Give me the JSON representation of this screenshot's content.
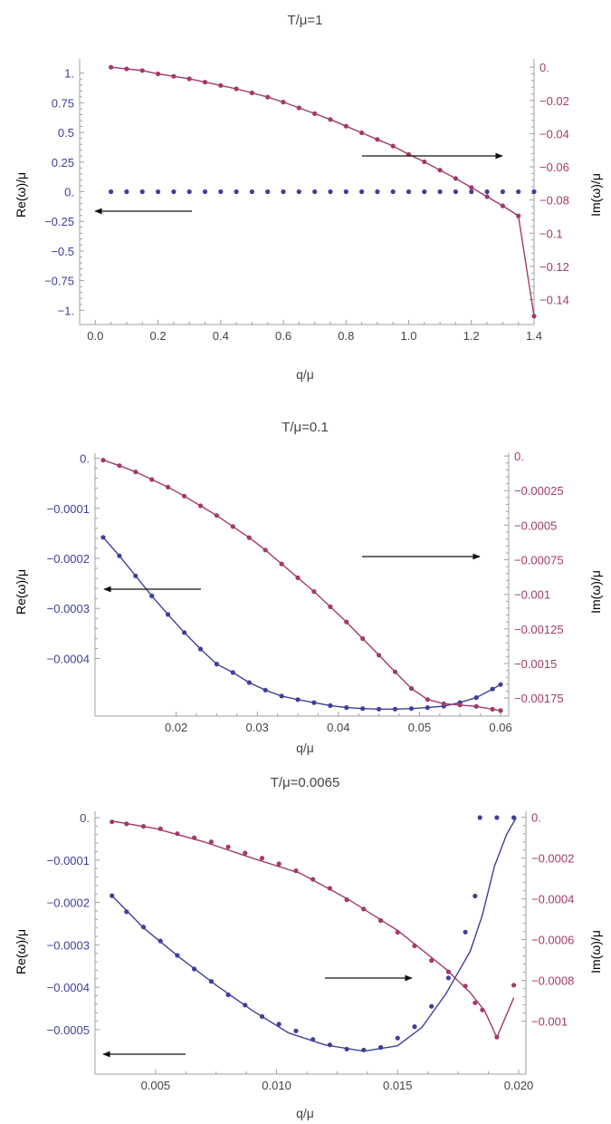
{
  "colors": {
    "re": "#3f3f9a",
    "im": "#a23a6a",
    "axis": "#a0a0a0",
    "text": "#444444",
    "arrow": "#111111"
  },
  "chart_data": [
    {
      "type": "scatter",
      "title": "T/μ=1",
      "xlabel": "q/μ",
      "ylabel_left": "Re(ω)/μ",
      "ylabel_right": "Im(ω)/μ",
      "xlim": [
        -0.05,
        1.4
      ],
      "ylim_left": [
        -1.12,
        1.12
      ],
      "ylim_right": [
        -0.155,
        0.005
      ],
      "xticks": [
        0.0,
        0.2,
        0.4,
        0.6,
        0.8,
        1.0,
        1.2,
        1.4
      ],
      "xtick_labels": [
        "0.0",
        "0.2",
        "0.4",
        "0.6",
        "0.8",
        "1.0",
        "1.2",
        "1.4"
      ],
      "yticks_left": [
        1,
        0.75,
        0.5,
        0.25,
        0,
        -0.25,
        -0.5,
        -0.75,
        -1
      ],
      "ytick_labels_left": [
        "1.",
        "0.75",
        "0.5",
        "0.25",
        "0.",
        "−0.25",
        "−0.5",
        "−0.75",
        "−1."
      ],
      "yticks_right": [
        0,
        -0.02,
        -0.04,
        -0.06,
        -0.08,
        -0.1,
        -0.12,
        -0.14
      ],
      "ytick_labels_right": [
        "0.",
        "−0.02",
        "−0.04",
        "−0.06",
        "−0.08",
        "−0.1",
        "−0.12",
        "−0.14"
      ],
      "series": [
        {
          "name": "Re(ω)/μ",
          "axis": "left",
          "line": false,
          "points": [
            [
              0.05,
              0
            ],
            [
              0.1,
              0
            ],
            [
              0.15,
              0
            ],
            [
              0.2,
              0
            ],
            [
              0.25,
              0
            ],
            [
              0.3,
              0
            ],
            [
              0.35,
              0
            ],
            [
              0.4,
              0
            ],
            [
              0.45,
              0
            ],
            [
              0.5,
              0
            ],
            [
              0.55,
              0
            ],
            [
              0.6,
              0
            ],
            [
              0.65,
              0
            ],
            [
              0.7,
              0
            ],
            [
              0.75,
              0
            ],
            [
              0.8,
              0
            ],
            [
              0.85,
              0
            ],
            [
              0.9,
              0
            ],
            [
              0.95,
              0
            ],
            [
              1.0,
              0
            ],
            [
              1.05,
              0
            ],
            [
              1.1,
              0
            ],
            [
              1.15,
              0
            ],
            [
              1.2,
              0
            ],
            [
              1.25,
              0
            ],
            [
              1.3,
              0
            ],
            [
              1.35,
              0
            ],
            [
              1.4,
              0
            ]
          ]
        },
        {
          "name": "Im(ω)/μ",
          "axis": "right",
          "line": true,
          "points": [
            [
              0.05,
              0.0
            ],
            [
              0.1,
              -0.001
            ],
            [
              0.15,
              -0.002
            ],
            [
              0.2,
              -0.004
            ],
            [
              0.25,
              -0.0055
            ],
            [
              0.3,
              -0.007
            ],
            [
              0.35,
              -0.009
            ],
            [
              0.4,
              -0.011
            ],
            [
              0.45,
              -0.013
            ],
            [
              0.5,
              -0.0155
            ],
            [
              0.55,
              -0.018
            ],
            [
              0.6,
              -0.021
            ],
            [
              0.65,
              -0.0245
            ],
            [
              0.7,
              -0.028
            ],
            [
              0.75,
              -0.0315
            ],
            [
              0.8,
              -0.0355
            ],
            [
              0.85,
              -0.0395
            ],
            [
              0.9,
              -0.0435
            ],
            [
              0.95,
              -0.0475
            ],
            [
              1.0,
              -0.0525
            ],
            [
              1.05,
              -0.057
            ],
            [
              1.1,
              -0.062
            ],
            [
              1.15,
              -0.067
            ],
            [
              1.2,
              -0.0725
            ],
            [
              1.25,
              -0.078
            ],
            [
              1.3,
              -0.0835
            ],
            [
              1.35,
              -0.0895
            ],
            [
              1.4,
              -0.15
            ]
          ]
        }
      ]
    },
    {
      "type": "scatter",
      "title": "T/μ=0.1",
      "xlabel": "q/μ",
      "ylabel_left": "Re(ω)/μ",
      "ylabel_right": "Im(ω)/μ",
      "xlim": [
        0.01,
        0.061
      ],
      "ylim_left": [
        -0.000515,
        1e-05
      ],
      "ylim_right": [
        -0.00188,
        2e-05
      ],
      "xticks": [
        0.02,
        0.03,
        0.04,
        0.05,
        0.06
      ],
      "xtick_labels": [
        "0.02",
        "0.03",
        "0.04",
        "0.05",
        "0.06"
      ],
      "yticks_left": [
        0,
        -0.0001,
        -0.0002,
        -0.0003,
        -0.0004
      ],
      "ytick_labels_left": [
        "0.",
        "−0.0001",
        "−0.0002",
        "−0.0003",
        "−0.0004"
      ],
      "yticks_right": [
        0,
        -0.00025,
        -0.0005,
        -0.00075,
        -0.001,
        -0.00125,
        -0.0015,
        -0.00175
      ],
      "ytick_labels_right": [
        "0.",
        "−0.00025",
        "−0.0005",
        "−0.00075",
        "−0.001",
        "−0.00125",
        "−0.0015",
        "−0.00175"
      ],
      "series": [
        {
          "name": "Re(ω)/μ",
          "axis": "left",
          "line": true,
          "points": [
            [
              0.011,
              -0.000158
            ],
            [
              0.013,
              -0.000195
            ],
            [
              0.015,
              -0.000235
            ],
            [
              0.017,
              -0.000275
            ],
            [
              0.019,
              -0.000312
            ],
            [
              0.021,
              -0.000348
            ],
            [
              0.023,
              -0.000381
            ],
            [
              0.025,
              -0.000411
            ],
            [
              0.027,
              -0.000428
            ],
            [
              0.029,
              -0.000448
            ],
            [
              0.031,
              -0.000463
            ],
            [
              0.033,
              -0.000475
            ],
            [
              0.035,
              -0.000482
            ],
            [
              0.037,
              -0.000488
            ],
            [
              0.039,
              -0.000494
            ],
            [
              0.041,
              -0.000498
            ],
            [
              0.043,
              -0.0005
            ],
            [
              0.045,
              -0.000501
            ],
            [
              0.047,
              -0.000501
            ],
            [
              0.049,
              -0.0005
            ],
            [
              0.051,
              -0.000498
            ],
            [
              0.053,
              -0.000495
            ],
            [
              0.055,
              -0.000488
            ],
            [
              0.057,
              -0.000478
            ],
            [
              0.059,
              -0.000461
            ],
            [
              0.06,
              -0.000452
            ]
          ]
        },
        {
          "name": "Im(ω)/μ",
          "axis": "right",
          "line": true,
          "points": [
            [
              0.011,
              -3e-05
            ],
            [
              0.013,
              -7e-05
            ],
            [
              0.015,
              -0.000115
            ],
            [
              0.017,
              -0.00017
            ],
            [
              0.019,
              -0.000225
            ],
            [
              0.021,
              -0.00029
            ],
            [
              0.023,
              -0.00036
            ],
            [
              0.025,
              -0.00043
            ],
            [
              0.027,
              -0.00051
            ],
            [
              0.029,
              -0.00059
            ],
            [
              0.031,
              -0.00068
            ],
            [
              0.033,
              -0.00078
            ],
            [
              0.035,
              -0.00088
            ],
            [
              0.037,
              -0.00098
            ],
            [
              0.039,
              -0.00109
            ],
            [
              0.041,
              -0.0012
            ],
            [
              0.043,
              -0.00132
            ],
            [
              0.045,
              -0.00144
            ],
            [
              0.047,
              -0.00156
            ],
            [
              0.049,
              -0.00168
            ],
            [
              0.051,
              -0.00176
            ],
            [
              0.053,
              -0.00179
            ],
            [
              0.055,
              -0.0018
            ],
            [
              0.057,
              -0.00181
            ],
            [
              0.059,
              -0.00183
            ],
            [
              0.06,
              -0.00184
            ]
          ]
        }
      ]
    },
    {
      "type": "scatter",
      "title": "T/μ=0.0065",
      "xlabel": "q/μ",
      "ylabel_left": "Re(ω)/μ",
      "ylabel_right": "Im(ω)/μ",
      "xlim": [
        0.0025,
        0.0203
      ],
      "ylim_left": [
        -0.000605,
        1.5e-05
      ],
      "ylim_right": [
        -0.00126,
        3e-05
      ],
      "xticks": [
        0.005,
        0.01,
        0.015,
        0.02
      ],
      "xtick_labels": [
        "0.005",
        "0.010",
        "0.015",
        "0.020"
      ],
      "yticks_left": [
        0,
        -0.0001,
        -0.0002,
        -0.0003,
        -0.0004,
        -0.0005
      ],
      "ytick_labels_left": [
        "0.",
        "−0.0001",
        "−0.0002",
        "−0.0003",
        "−0.0004",
        "−0.0005"
      ],
      "yticks_right": [
        0,
        -0.0002,
        -0.0004,
        -0.0006,
        -0.0008,
        -0.001
      ],
      "ytick_labels_right": [
        "0.",
        "−0.0002",
        "−0.0004",
        "−0.0006",
        "−0.0008",
        "−0.001"
      ],
      "series": [
        {
          "name": "Re(ω)/μ points",
          "axis": "left",
          "line": false,
          "points": [
            [
              0.0032,
              -0.000184
            ],
            [
              0.0038,
              -0.000222
            ],
            [
              0.0045,
              -0.000258
            ],
            [
              0.0052,
              -0.000291
            ],
            [
              0.0059,
              -0.000325
            ],
            [
              0.0066,
              -0.000357
            ],
            [
              0.0073,
              -0.000386
            ],
            [
              0.008,
              -0.000418
            ],
            [
              0.0087,
              -0.000442
            ],
            [
              0.0094,
              -0.000469
            ],
            [
              0.0101,
              -0.000487
            ],
            [
              0.0108,
              -0.000503
            ],
            [
              0.0115,
              -0.000523
            ],
            [
              0.0122,
              -0.000536
            ],
            [
              0.0129,
              -0.000546
            ],
            [
              0.0136,
              -0.000548
            ],
            [
              0.0143,
              -0.000542
            ],
            [
              0.015,
              -0.00052
            ],
            [
              0.0157,
              -0.000493
            ],
            [
              0.0164,
              -0.000445
            ],
            [
              0.0171,
              -0.000378
            ],
            [
              0.0178,
              -0.00027
            ],
            [
              0.0182,
              -0.000185
            ],
            [
              0.0184,
              0.0
            ],
            [
              0.0191,
              0.0
            ],
            [
              0.0198,
              0.0
            ]
          ]
        },
        {
          "name": "Re(ω)/μ curve",
          "axis": "left",
          "line": true,
          "markers": false,
          "points": [
            [
              0.0032,
              -0.000184
            ],
            [
              0.0045,
              -0.00026
            ],
            [
              0.006,
              -0.00033
            ],
            [
              0.0075,
              -0.000395
            ],
            [
              0.009,
              -0.000455
            ],
            [
              0.0105,
              -0.000508
            ],
            [
              0.012,
              -0.000536
            ],
            [
              0.0136,
              -0.000551
            ],
            [
              0.015,
              -0.000538
            ],
            [
              0.016,
              -0.000495
            ],
            [
              0.017,
              -0.000415
            ],
            [
              0.018,
              -0.000315
            ],
            [
              0.0185,
              -0.00023
            ],
            [
              0.019,
              -0.000115
            ],
            [
              0.0195,
              -4e-05
            ],
            [
              0.0199,
              0.0
            ]
          ]
        },
        {
          "name": "Im(ω)/μ points",
          "axis": "right",
          "line": false,
          "points": [
            [
              0.0032,
              -2.2e-05
            ],
            [
              0.0038,
              -3.2e-05
            ],
            [
              0.0045,
              -4.4e-05
            ],
            [
              0.0052,
              -5.6e-05
            ],
            [
              0.0059,
              -8e-05
            ],
            [
              0.0066,
              -0.0001
            ],
            [
              0.0073,
              -0.00012
            ],
            [
              0.008,
              -0.000145
            ],
            [
              0.0087,
              -0.000175
            ],
            [
              0.0094,
              -0.0002
            ],
            [
              0.0101,
              -0.000228
            ],
            [
              0.0108,
              -0.000262
            ],
            [
              0.0115,
              -0.000304
            ],
            [
              0.0122,
              -0.000348
            ],
            [
              0.0129,
              -0.000404
            ],
            [
              0.0136,
              -0.00045
            ],
            [
              0.0143,
              -0.000506
            ],
            [
              0.015,
              -0.000564
            ],
            [
              0.0157,
              -0.00063
            ],
            [
              0.0164,
              -0.000702
            ],
            [
              0.0171,
              -0.000758
            ],
            [
              0.0178,
              -0.000828
            ],
            [
              0.0182,
              -0.00091
            ],
            [
              0.0185,
              -0.000945
            ],
            [
              0.0191,
              -0.001078
            ],
            [
              0.0198,
              -0.000823
            ]
          ]
        },
        {
          "name": "Im(ω)/μ curve",
          "axis": "right",
          "line": true,
          "markers": false,
          "points": [
            [
              0.0032,
              -1.8e-05
            ],
            [
              0.005,
              -5.5e-05
            ],
            [
              0.007,
              -0.00012
            ],
            [
              0.009,
              -0.0002
            ],
            [
              0.011,
              -0.000275
            ],
            [
              0.013,
              -0.000405
            ],
            [
              0.015,
              -0.000555
            ],
            [
              0.017,
              -0.000745
            ],
            [
              0.018,
              -0.00086
            ],
            [
              0.0186,
              -0.00095
            ],
            [
              0.0191,
              -0.00108
            ],
            [
              0.0198,
              -0.000885
            ]
          ]
        }
      ]
    }
  ]
}
